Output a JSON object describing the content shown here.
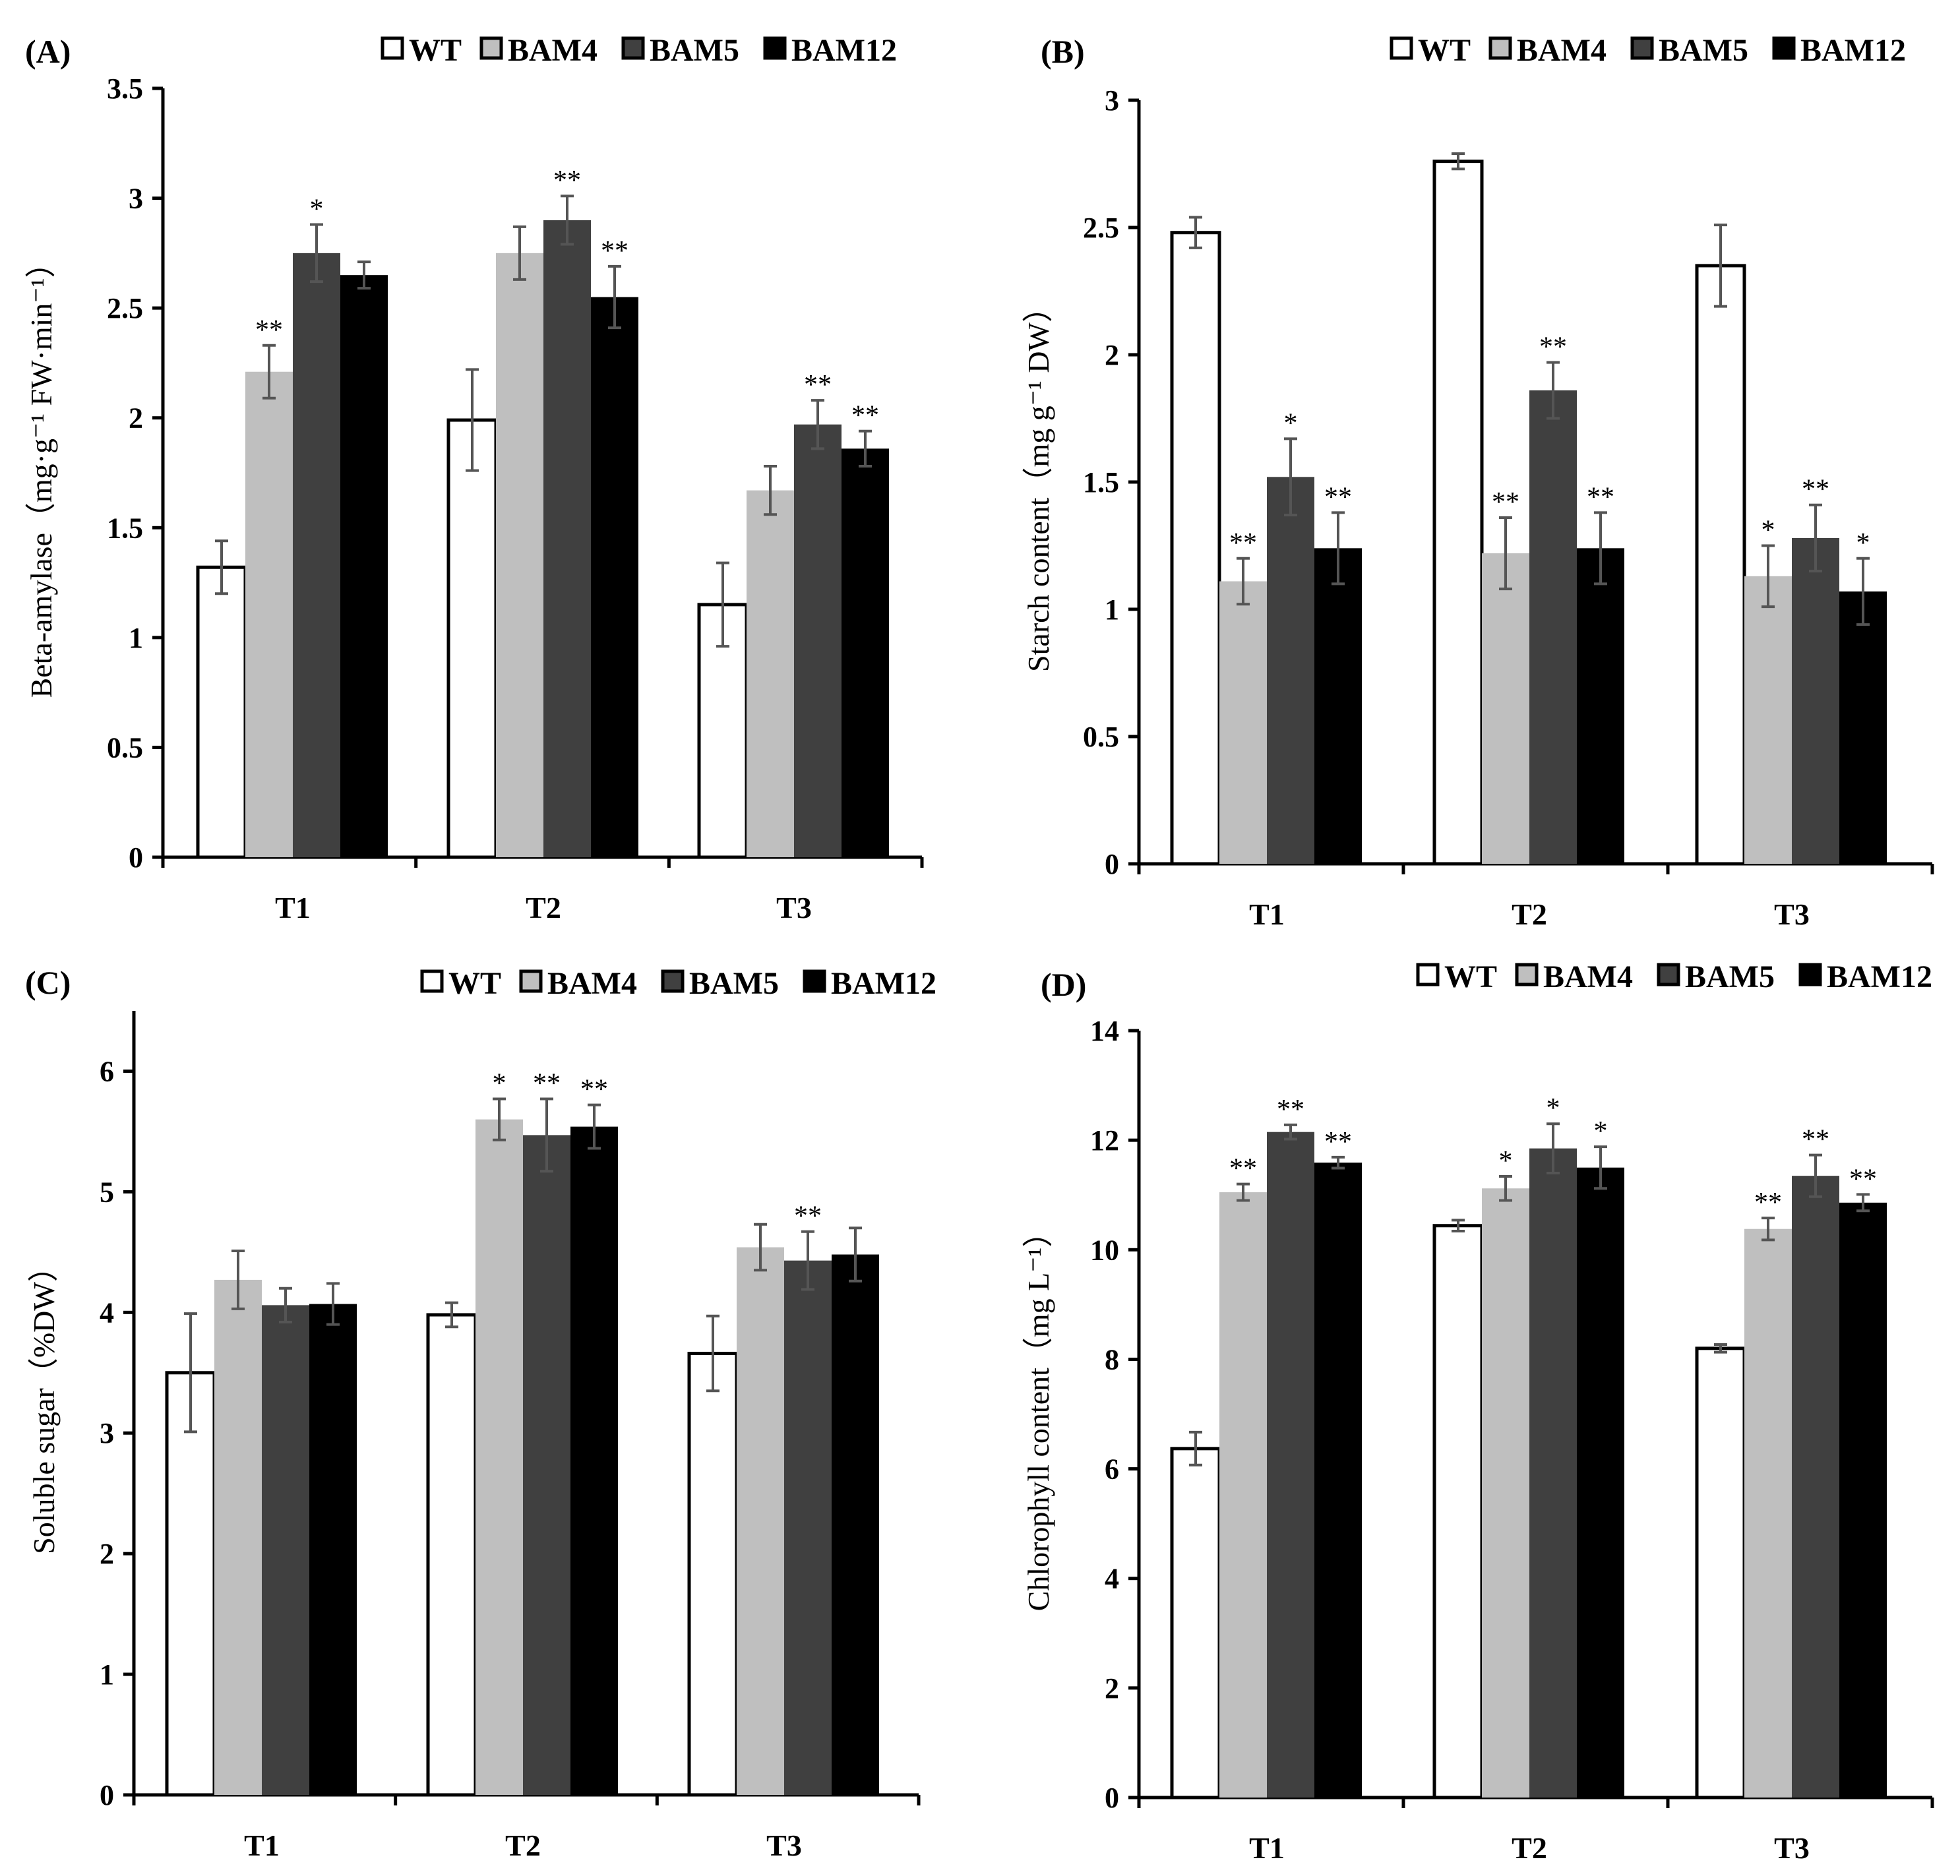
{
  "colors": {
    "WT": "#ffffff",
    "BAM4": "#bfbfbf",
    "BAM5": "#404040",
    "BAM12": "#000000",
    "error_bar": "#555555"
  },
  "chart_data": [
    {
      "type": "bar",
      "panel_label": "(A)",
      "ylabel": "Beta-amylase（mg·g⁻¹ FW·min⁻¹）",
      "categories": [
        "T1",
        "T2",
        "T3"
      ],
      "ylim": [
        0,
        3.5
      ],
      "yticks": [
        0,
        0.5,
        1,
        1.5,
        2,
        2.5,
        3,
        3.5
      ],
      "ytick_labels": [
        "0",
        "0.5",
        "1",
        "1.5",
        "2",
        "2.5",
        "3",
        "3.5"
      ],
      "legend": [
        "WT",
        "BAM4",
        "BAM5",
        "BAM12"
      ],
      "series": [
        {
          "name": "WT",
          "values": [
            1.32,
            1.99,
            1.15
          ],
          "errors": [
            0.12,
            0.23,
            0.19
          ],
          "sig": [
            "",
            "",
            ""
          ]
        },
        {
          "name": "BAM4",
          "values": [
            2.21,
            2.75,
            1.67
          ],
          "errors": [
            0.12,
            0.12,
            0.11
          ],
          "sig": [
            "**",
            "",
            ""
          ]
        },
        {
          "name": "BAM5",
          "values": [
            2.75,
            2.9,
            1.97
          ],
          "errors": [
            0.13,
            0.11,
            0.11
          ],
          "sig": [
            "*",
            "**",
            "**"
          ]
        },
        {
          "name": "BAM12",
          "values": [
            2.65,
            2.55,
            1.86
          ],
          "errors": [
            0.06,
            0.14,
            0.08
          ],
          "sig": [
            "",
            "**",
            "**"
          ]
        }
      ]
    },
    {
      "type": "bar",
      "panel_label": "(B)",
      "ylabel": "Starch content（mg g⁻¹ DW）",
      "categories": [
        "T1",
        "T2",
        "T3"
      ],
      "ylim": [
        0,
        3
      ],
      "yticks": [
        0,
        0.5,
        1,
        1.5,
        2,
        2.5,
        3
      ],
      "ytick_labels": [
        "0",
        "0.5",
        "1",
        "1.5",
        "2",
        "2.5",
        "3"
      ],
      "legend": [
        "WT",
        "BAM4",
        "BAM5",
        "BAM12"
      ],
      "series": [
        {
          "name": "WT",
          "values": [
            2.48,
            2.76,
            2.35
          ],
          "errors": [
            0.06,
            0.03,
            0.16
          ],
          "sig": [
            "",
            "",
            ""
          ]
        },
        {
          "name": "BAM4",
          "values": [
            1.11,
            1.22,
            1.13
          ],
          "errors": [
            0.09,
            0.14,
            0.12
          ],
          "sig": [
            "**",
            "**",
            "*"
          ]
        },
        {
          "name": "BAM5",
          "values": [
            1.52,
            1.86,
            1.28
          ],
          "errors": [
            0.15,
            0.11,
            0.13
          ],
          "sig": [
            "*",
            "**",
            "**"
          ]
        },
        {
          "name": "BAM12",
          "values": [
            1.24,
            1.24,
            1.07
          ],
          "errors": [
            0.14,
            0.14,
            0.13
          ],
          "sig": [
            "**",
            "**",
            "*"
          ]
        }
      ]
    },
    {
      "type": "bar",
      "panel_label": "(C)",
      "ylabel": "Soluble sugar（%DW）",
      "categories": [
        "T1",
        "T2",
        "T3"
      ],
      "ylim": [
        0,
        6.5
      ],
      "yticks": [
        0,
        1,
        2,
        3,
        4,
        5,
        6
      ],
      "ytick_labels": [
        "0",
        "1",
        "2",
        "3",
        "4",
        "5",
        "6"
      ],
      "legend": [
        "WT",
        "BAM4",
        "BAM5",
        "BAM12"
      ],
      "series": [
        {
          "name": "WT",
          "values": [
            3.5,
            3.98,
            3.66
          ],
          "errors": [
            0.49,
            0.1,
            0.31
          ],
          "sig": [
            "",
            "",
            ""
          ]
        },
        {
          "name": "BAM4",
          "values": [
            4.27,
            5.6,
            4.54
          ],
          "errors": [
            0.24,
            0.17,
            0.19
          ],
          "sig": [
            "",
            "*",
            ""
          ]
        },
        {
          "name": "BAM5",
          "values": [
            4.06,
            5.47,
            4.43
          ],
          "errors": [
            0.14,
            0.3,
            0.24
          ],
          "sig": [
            "",
            "**",
            "**"
          ]
        },
        {
          "name": "BAM12",
          "values": [
            4.07,
            5.54,
            4.48
          ],
          "errors": [
            0.17,
            0.18,
            0.22
          ],
          "sig": [
            "",
            "**",
            ""
          ]
        }
      ]
    },
    {
      "type": "bar",
      "panel_label": "(D)",
      "ylabel": "Chlorophyll content（mg L⁻¹）",
      "categories": [
        "T1",
        "T2",
        "T3"
      ],
      "ylim": [
        0,
        14
      ],
      "yticks": [
        0,
        2,
        4,
        6,
        8,
        10,
        12,
        14
      ],
      "ytick_labels": [
        "0",
        "2",
        "4",
        "6",
        "8",
        "10",
        "12",
        "14"
      ],
      "legend": [
        "WT",
        "BAM4",
        "BAM5",
        "BAM12"
      ],
      "series": [
        {
          "name": "WT",
          "values": [
            6.37,
            10.44,
            8.2
          ],
          "errors": [
            0.3,
            0.1,
            0.07
          ],
          "sig": [
            "",
            "",
            ""
          ]
        },
        {
          "name": "BAM4",
          "values": [
            11.05,
            11.12,
            10.38
          ],
          "errors": [
            0.15,
            0.22,
            0.2
          ],
          "sig": [
            "**",
            "*",
            "**"
          ]
        },
        {
          "name": "BAM5",
          "values": [
            12.15,
            11.85,
            11.35
          ],
          "errors": [
            0.13,
            0.45,
            0.38
          ],
          "sig": [
            "**",
            "*",
            "**"
          ]
        },
        {
          "name": "BAM12",
          "values": [
            11.59,
            11.5,
            10.86
          ],
          "errors": [
            0.1,
            0.38,
            0.15
          ],
          "sig": [
            "**",
            "*",
            "**"
          ]
        }
      ]
    }
  ]
}
